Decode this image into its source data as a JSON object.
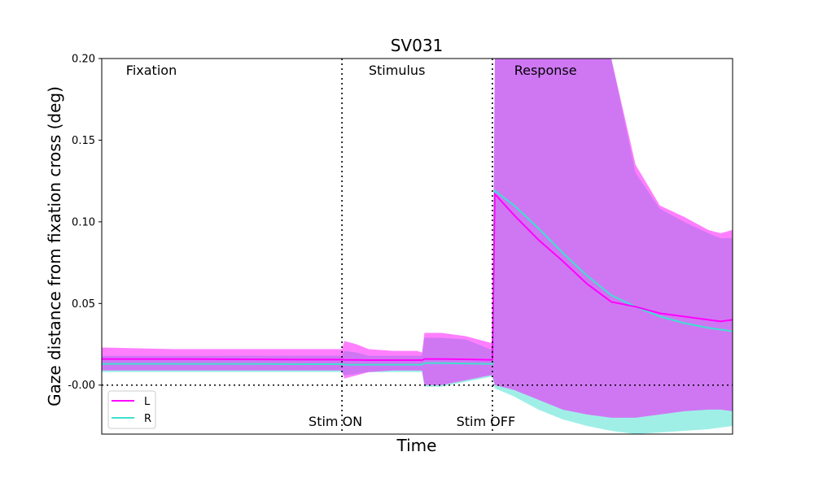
{
  "chart_data": {
    "type": "area",
    "title": "SV031",
    "xlabel": "Time",
    "ylabel": "Gaze distance from fixation cross (deg)",
    "xlim": [
      0,
      2.6
    ],
    "ylim": [
      -0.03,
      0.2
    ],
    "y_ticks": [
      "-0.00",
      "0.05",
      "0.10",
      "0.15",
      "0.20"
    ],
    "y_tick_values": [
      0,
      0.05,
      0.1,
      0.15,
      0.2
    ],
    "grid": false,
    "legend_position": "lower-left",
    "phases": [
      {
        "label": "Fixation",
        "x": 0.1
      },
      {
        "label": "Stimulus",
        "x": 1.1
      },
      {
        "label": "Response",
        "x": 1.7
      }
    ],
    "events": [
      {
        "label": "Stim ON",
        "x": 0.99
      },
      {
        "label": "Stim OFF",
        "x": 1.61
      }
    ],
    "zero_line": 0,
    "series": [
      {
        "name": "L",
        "color": "#ff00ff",
        "band_color": "#ff00ff",
        "x": [
          0,
          0.3,
          0.6,
          0.9,
          0.99,
          1.0,
          1.05,
          1.1,
          1.2,
          1.3,
          1.32,
          1.33,
          1.4,
          1.5,
          1.6,
          1.61,
          1.62,
          1.7,
          1.8,
          1.9,
          2.0,
          2.1,
          2.2,
          2.3,
          2.4,
          2.5,
          2.55,
          2.6
        ],
        "mean": [
          0.016,
          0.016,
          0.0158,
          0.0156,
          0.0156,
          0.0155,
          0.0154,
          0.0153,
          0.0153,
          0.0153,
          0.0153,
          0.016,
          0.016,
          0.0158,
          0.0155,
          0.0155,
          0.117,
          0.104,
          0.089,
          0.076,
          0.062,
          0.051,
          0.048,
          0.044,
          0.042,
          0.04,
          0.039,
          0.04
        ],
        "upper": [
          0.023,
          0.022,
          0.022,
          0.022,
          0.022,
          0.027,
          0.025,
          0.022,
          0.021,
          0.021,
          0.02,
          0.032,
          0.032,
          0.03,
          0.026,
          0.026,
          0.2,
          0.2,
          0.2,
          0.2,
          0.2,
          0.2,
          0.135,
          0.11,
          0.103,
          0.095,
          0.093,
          0.095
        ],
        "lower": [
          0.009,
          0.009,
          0.009,
          0.009,
          0.009,
          0.004,
          0.006,
          0.008,
          0.009,
          0.009,
          0.009,
          0.0,
          0.0,
          0.003,
          0.006,
          0.006,
          0.0,
          -0.003,
          -0.009,
          -0.015,
          -0.018,
          -0.02,
          -0.02,
          -0.018,
          -0.016,
          -0.015,
          -0.015,
          -0.016
        ]
      },
      {
        "name": "R",
        "color": "#40e0d0",
        "band_color": "#40e0d0",
        "x": [
          0,
          0.3,
          0.6,
          0.9,
          0.99,
          1.0,
          1.05,
          1.1,
          1.2,
          1.3,
          1.32,
          1.33,
          1.4,
          1.5,
          1.6,
          1.61,
          1.62,
          1.7,
          1.8,
          1.9,
          2.0,
          2.1,
          2.2,
          2.3,
          2.4,
          2.5,
          2.55,
          2.6
        ],
        "mean": [
          0.013,
          0.013,
          0.013,
          0.0128,
          0.0128,
          0.0125,
          0.0125,
          0.0125,
          0.0125,
          0.0125,
          0.0125,
          0.0135,
          0.0135,
          0.0132,
          0.013,
          0.013,
          0.119,
          0.11,
          0.096,
          0.081,
          0.067,
          0.055,
          0.048,
          0.042,
          0.038,
          0.035,
          0.034,
          0.033
        ],
        "upper": [
          0.018,
          0.018,
          0.018,
          0.018,
          0.018,
          0.021,
          0.02,
          0.018,
          0.018,
          0.018,
          0.018,
          0.029,
          0.029,
          0.028,
          0.022,
          0.022,
          0.2,
          0.2,
          0.2,
          0.2,
          0.2,
          0.2,
          0.13,
          0.108,
          0.1,
          0.093,
          0.09,
          0.09
        ],
        "lower": [
          0.008,
          0.008,
          0.008,
          0.008,
          0.008,
          0.006,
          0.007,
          0.008,
          0.008,
          0.008,
          0.008,
          -0.001,
          -0.001,
          0.002,
          0.005,
          0.005,
          -0.002,
          -0.007,
          -0.015,
          -0.021,
          -0.025,
          -0.028,
          -0.03,
          -0.029,
          -0.028,
          -0.027,
          -0.026,
          -0.025
        ]
      }
    ]
  }
}
